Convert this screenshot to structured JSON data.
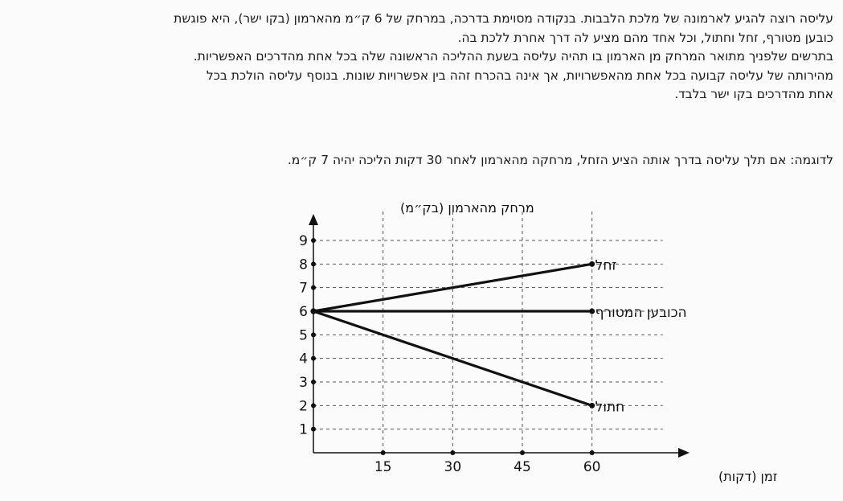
{
  "problem": {
    "lines": [
      "עליסה רוצה להגיע לארמונה של מלכת הלבבות. בנקודה מסוימת בדרכה, במרחק של 6 ק״מ מהארמון (בקו ישר), היא פוגשת",
      "כובען מטורף, זחל וחתול, וכל אחד מהם מציע לה דרך אחרת ללכת בה.",
      "בתרשים שלפניך מתואר המרחק מן הארמון בו תהיה עליסה בשעת ההליכה הראשונה שלה בכל אחת מהדרכים האפשריות.",
      "מהירותה של עליסה קבועה בכל אחת מהאפשרויות, אך אינה בהכרח זהה בין אפשרויות שונות. בנוסף עליסה הולכת בכל",
      "אחת מהדרכים בקו ישר בלבד."
    ],
    "example": "לדוגמה: אם תלך עליסה בדרך אותה הציע הזחל, מרחקה מהארמון לאחר 30 דקות הליכה יהיה 7 ק״מ."
  },
  "chart_data": {
    "type": "line",
    "ylabel": "מרחק מהארמון (בק״מ)",
    "xlabel": "זמן (דקות)",
    "x_ticks": [
      15,
      30,
      45,
      60
    ],
    "y_ticks": [
      1,
      2,
      3,
      4,
      5,
      6,
      7,
      8,
      9
    ],
    "xlim": [
      0,
      60
    ],
    "ylim": [
      0,
      9
    ],
    "grid": true,
    "series": [
      {
        "name": "זחל",
        "x": [
          0,
          60
        ],
        "y": [
          6,
          8
        ]
      },
      {
        "name": "הכובען המטורף",
        "x": [
          0,
          60
        ],
        "y": [
          6,
          6
        ]
      },
      {
        "name": "חתול",
        "x": [
          0,
          60
        ],
        "y": [
          6,
          2
        ]
      }
    ]
  }
}
